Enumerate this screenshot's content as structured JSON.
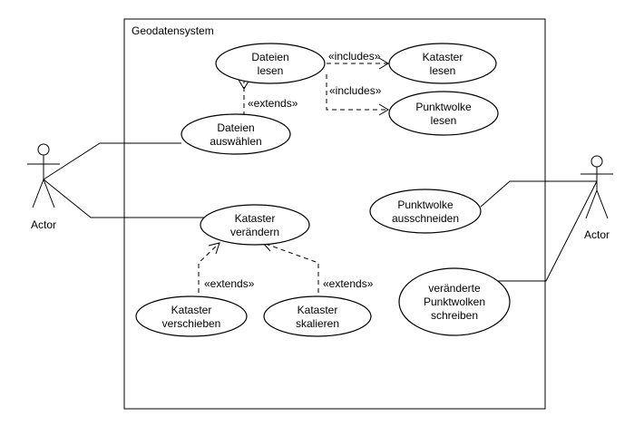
{
  "system": {
    "title": "Geodatensystem"
  },
  "actors": {
    "left": {
      "label": "Actor"
    },
    "right": {
      "label": "Actor"
    }
  },
  "use_cases": {
    "dateien_lesen": [
      "Dateien",
      "lesen"
    ],
    "kataster_lesen": [
      "Kataster",
      "lesen"
    ],
    "punktwolke_lesen": [
      "Punktwolke",
      "lesen"
    ],
    "dateien_auswaehlen": [
      "Dateien",
      "auswählen"
    ],
    "kataster_veraendern": [
      "Kataster",
      "verändern"
    ],
    "punktwolke_ausschneiden": [
      "Punktwolke",
      "ausschneiden"
    ],
    "kataster_verschieben": [
      "Kataster",
      "verschieben"
    ],
    "kataster_skalieren": [
      "Kataster",
      "skalieren"
    ],
    "punktwolken_schreiben": [
      "veränderte",
      "Punktwolken",
      "schreiben"
    ]
  },
  "relations": {
    "includes_1": "«includes»",
    "includes_2": "«includes»",
    "extends_1": "«extends»",
    "extends_2": "«extends»",
    "extends_3": "«extends»"
  }
}
